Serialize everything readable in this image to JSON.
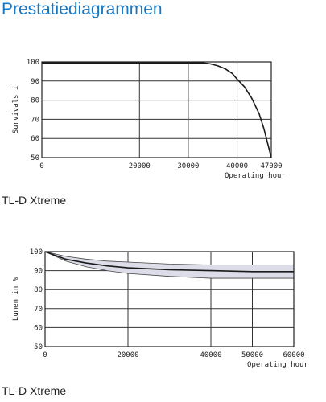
{
  "page": {
    "title": "Prestatiediagrammen",
    "captions": [
      "TL-D Xtreme",
      "TL-D Xtreme"
    ]
  },
  "chart_data": [
    {
      "type": "line",
      "ylabel": "Survivals i",
      "xlabel": "Operating hour",
      "x_ticks": [
        0,
        20000,
        30000,
        40000,
        47000
      ],
      "y_ticks": [
        50,
        60,
        70,
        80,
        90,
        100
      ],
      "xlim": [
        0,
        47000
      ],
      "ylim": [
        50,
        100
      ],
      "grid": true,
      "series": [
        {
          "x": [
            0,
            33000,
            34500,
            36000,
            37500,
            39000,
            40000,
            41500,
            43000,
            44500,
            45500,
            46300,
            47000
          ],
          "values": [
            99.5,
            99.5,
            99.0,
            98.0,
            96.5,
            94.0,
            91.0,
            87.0,
            81.0,
            73.0,
            65.0,
            57.0,
            50.0
          ]
        }
      ]
    },
    {
      "type": "area",
      "ylabel": "Lumen in %",
      "xlabel": "Operating hour",
      "x_ticks": [
        0,
        20000,
        40000,
        50000,
        60000
      ],
      "y_ticks": [
        50,
        60,
        70,
        80,
        90,
        100
      ],
      "xlim": [
        0,
        60000
      ],
      "ylim": [
        50,
        100
      ],
      "grid": true,
      "series": [
        {
          "x": [
            0,
            5000,
            10000,
            15000,
            20000,
            30000,
            40000,
            50000,
            60000
          ],
          "values": [
            100,
            96,
            94,
            92.5,
            91.5,
            90.5,
            90,
            89.5,
            89.5
          ]
        }
      ],
      "band": {
        "x": [
          0,
          5000,
          10000,
          15000,
          20000,
          30000,
          40000,
          50000,
          60000
        ],
        "upper": [
          100,
          97.5,
          96,
          95,
          94.5,
          93.5,
          93,
          93,
          93
        ],
        "lower": [
          100,
          95,
          92,
          90,
          88.5,
          87,
          86,
          86,
          86
        ],
        "fill": "#dcdde8"
      }
    }
  ]
}
